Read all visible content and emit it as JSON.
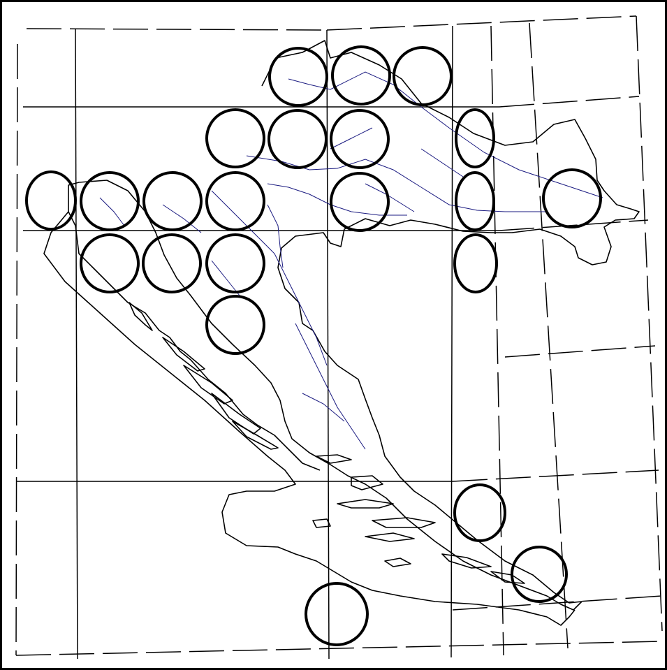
{
  "map": {
    "colors": {
      "background": "#ffffff",
      "frame": "#000000",
      "grid": "#000000",
      "coastline": "#000000",
      "rivers": "#1a1a80",
      "circles": "#000000"
    },
    "marker": {
      "shape": "circle"
    }
  }
}
